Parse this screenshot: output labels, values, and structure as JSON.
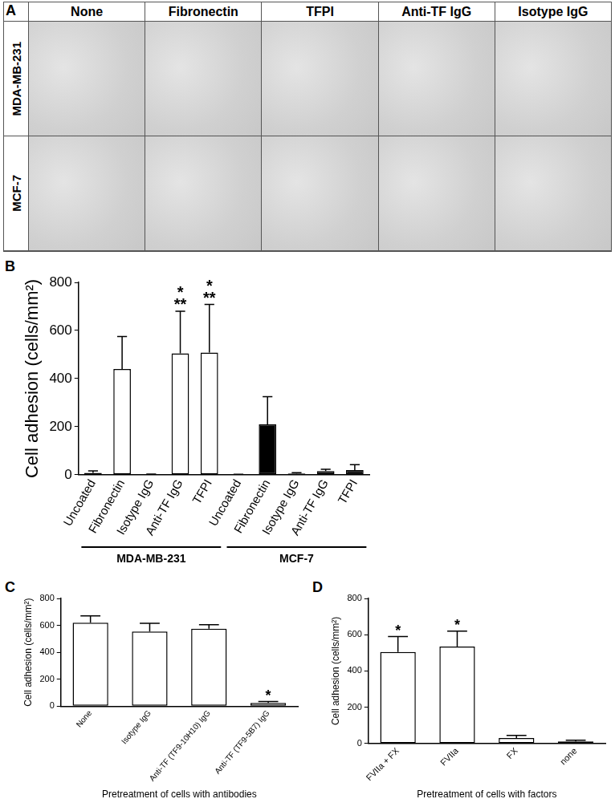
{
  "image_grid": {
    "title": "A",
    "columns": [
      "None",
      "Fibronectin",
      "TFPI",
      "Anti-TF IgG",
      "Isotype IgG"
    ],
    "rows": [
      "MDA-MB-231",
      "MCF-7"
    ]
  },
  "chart_data": [
    {
      "title": "B",
      "type": "bar",
      "categories": [
        "Uncoated",
        "Fibronectin",
        "Isotype IgG",
        "Anti-TF IgG",
        "TFPI",
        "Uncoated",
        "Fibronectin",
        "Isotype IgG",
        "Anti-TF IgG",
        "TFPI"
      ],
      "y_label": "Cell adhesion (cells/mm²)",
      "ylim": [
        0,
        800
      ],
      "yticks": [
        0,
        200,
        400,
        600,
        800
      ],
      "grid": false,
      "series": [
        {
          "name": "MDA-MB-231",
          "color": "#ffffff",
          "values": [
            8,
            440,
            2,
            505,
            508,
            null,
            null,
            null,
            null,
            null
          ],
          "errors": [
            8,
            135,
            1,
            175,
            200,
            null,
            null,
            null,
            null,
            null
          ],
          "annotations": [
            null,
            null,
            null,
            [
              "*",
              "**"
            ],
            [
              "*",
              "**"
            ],
            null,
            null,
            null,
            null,
            null
          ]
        },
        {
          "name": "MCF-7",
          "color": "#000000",
          "values": [
            null,
            null,
            null,
            null,
            null,
            1,
            210,
            5,
            15,
            20
          ],
          "errors": [
            null,
            null,
            null,
            null,
            null,
            1,
            115,
            4,
            8,
            22
          ]
        }
      ]
    },
    {
      "title": "C",
      "type": "bar",
      "categories": [
        "None",
        "Isotype IgG",
        "Anti-TF (TF9-10H10) IgG",
        "Anti-TF (TF9-5B7) IgG"
      ],
      "values": [
        620,
        555,
        575,
        25
      ],
      "errors": [
        50,
        60,
        30,
        10
      ],
      "annotations": [
        null,
        null,
        null,
        [
          "*"
        ]
      ],
      "color": "#ffffff",
      "x_label": "Pretreatment of cells with antibodies",
      "y_label": "Cell adhesion (cells/mm²)",
      "ylim": [
        0,
        800
      ],
      "yticks": [
        0,
        200,
        400,
        600,
        800
      ],
      "grid": false
    },
    {
      "title": "D",
      "type": "bar",
      "categories": [
        "FVIIa + FX",
        "FVIIa",
        "FX",
        "none"
      ],
      "values": [
        505,
        535,
        30,
        12
      ],
      "errors": [
        85,
        85,
        15,
        6
      ],
      "annotations": [
        [
          "*"
        ],
        [
          "*"
        ],
        null,
        null
      ],
      "color": "#ffffff",
      "x_label": "Pretreatment of cells with factors",
      "y_label": "Cell adhesion (cells/mm²)",
      "ylim": [
        0,
        800
      ],
      "yticks": [
        0,
        200,
        400,
        600,
        800
      ],
      "grid": false
    }
  ]
}
